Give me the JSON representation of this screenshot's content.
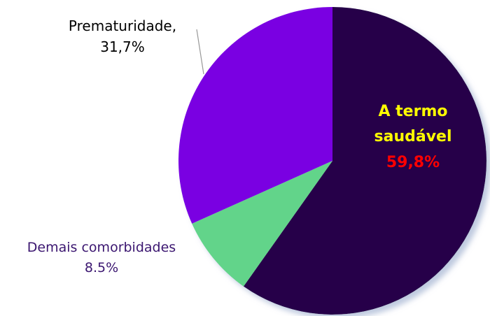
{
  "chart_data": {
    "type": "pie",
    "categories": [
      "A termo saudável",
      "Demais comorbidades",
      "Prematuridade,"
    ],
    "values": [
      59.8,
      8.5,
      31.7
    ],
    "value_labels": [
      "59,8%",
      "8.5%",
      "31,7%"
    ],
    "colors": [
      "#27004a",
      "#62d48a",
      "#7a00e2"
    ]
  }
}
